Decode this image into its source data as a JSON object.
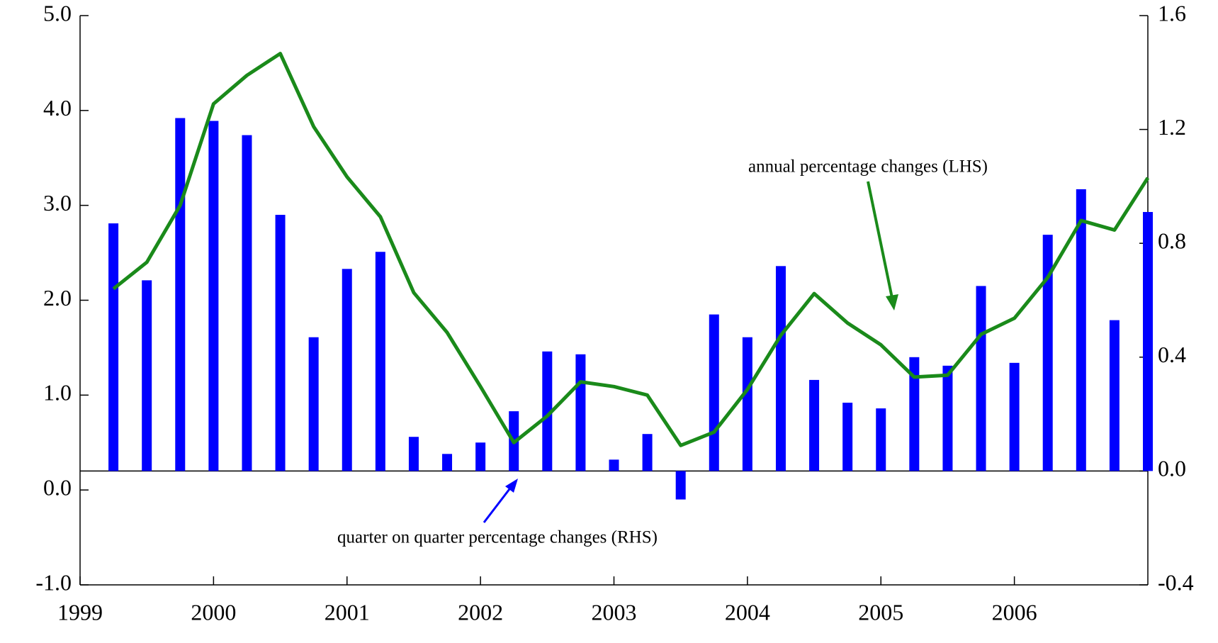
{
  "chart_data": {
    "type": "bar_line",
    "x": [
      1999.25,
      1999.5,
      1999.75,
      2000.0,
      2000.25,
      2000.5,
      2000.75,
      2001.0,
      2001.25,
      2001.5,
      2001.75,
      2002.0,
      2002.25,
      2002.5,
      2002.75,
      2003.0,
      2003.25,
      2003.5,
      2003.75,
      2004.0,
      2004.25,
      2004.5,
      2004.75,
      2005.0,
      2005.25,
      2005.5,
      2005.75,
      2006.0,
      2006.25,
      2006.5,
      2006.75,
      2007.0
    ],
    "series": [
      {
        "type": "bar",
        "axis": "y2",
        "color": "#0000ff",
        "values": [
          0.87,
          0.67,
          1.24,
          1.23,
          1.18,
          0.9,
          0.47,
          0.71,
          0.77,
          0.12,
          0.06,
          0.1,
          0.21,
          0.42,
          0.41,
          0.04,
          0.13,
          -0.1,
          0.55,
          0.47,
          0.72,
          0.32,
          0.24,
          0.22,
          0.4,
          0.37,
          0.65,
          0.38,
          0.83,
          0.99,
          0.53,
          0.91
        ]
      },
      {
        "type": "line",
        "axis": "y",
        "color": "#1a8a1a",
        "values": [
          2.12,
          2.4,
          3.0,
          4.07,
          4.37,
          4.6,
          3.83,
          3.3,
          2.88,
          2.08,
          1.66,
          1.09,
          0.5,
          0.78,
          1.14,
          1.09,
          1.0,
          0.47,
          0.61,
          1.06,
          1.63,
          2.07,
          1.76,
          1.53,
          1.19,
          1.21,
          1.64,
          1.81,
          2.24,
          2.84,
          2.74,
          3.29
        ]
      }
    ],
    "annotations": [
      "annual percentage changes (LHS)",
      "quarter on quarter percentage changes (RHS)"
    ],
    "xlim": [
      1999,
      2007
    ],
    "xticks": [
      1999,
      2000,
      2001,
      2002,
      2003,
      2004,
      2005,
      2006
    ],
    "ylim": [
      -1,
      5
    ],
    "yticks": [
      {
        "value": -1,
        "label": "-1.0"
      },
      {
        "value": 0,
        "label": "0.0"
      },
      {
        "value": 1,
        "label": "1.0"
      },
      {
        "value": 2,
        "label": "2.0"
      },
      {
        "value": 3,
        "label": "3.0"
      },
      {
        "value": 4,
        "label": "4.0"
      },
      {
        "value": 5,
        "label": "5.0"
      }
    ],
    "y2lim": [
      -0.4,
      1.6
    ],
    "y2ticks": [
      -0.4,
      {
        "value": 0,
        "label": "0.0"
      },
      0.4,
      0.8,
      1.2,
      1.6
    ]
  }
}
